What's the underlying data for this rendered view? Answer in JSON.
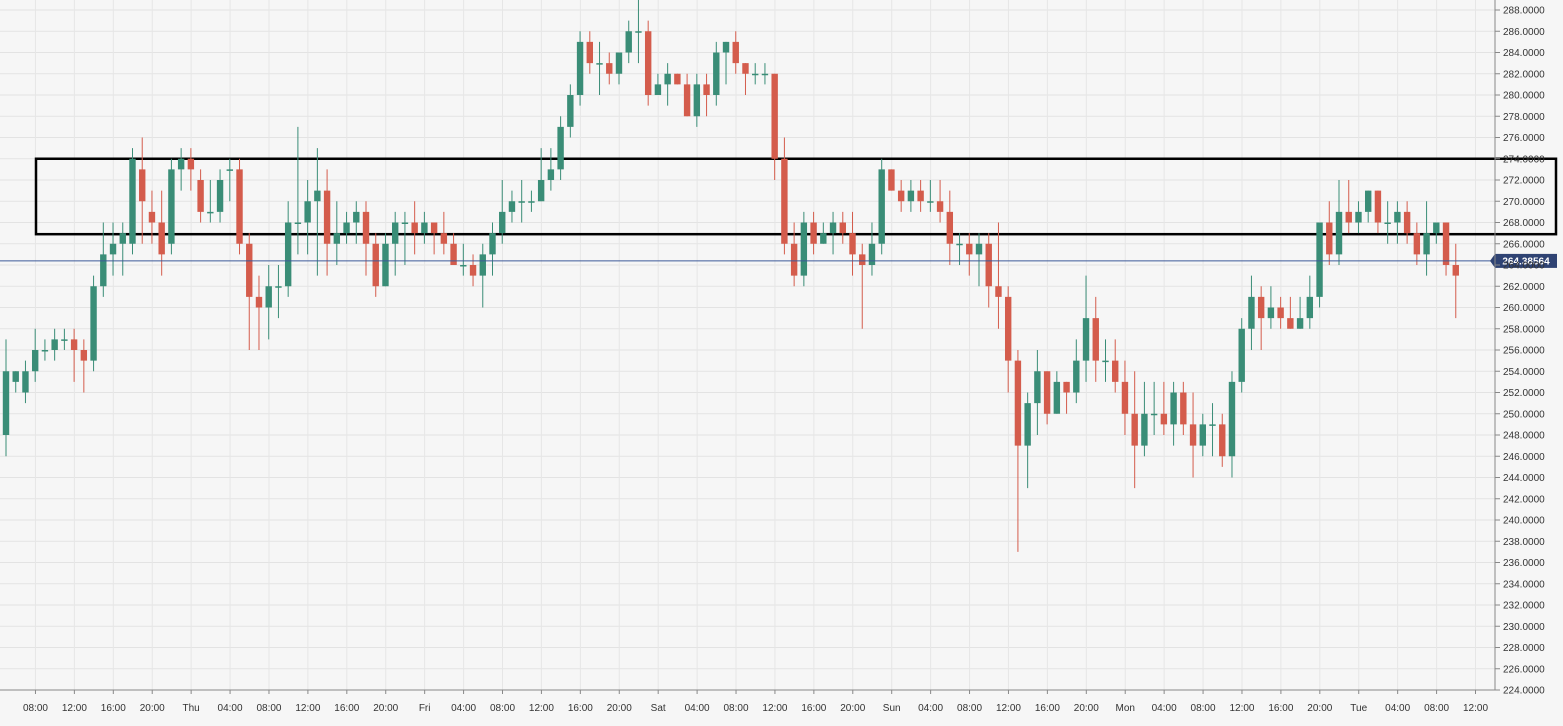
{
  "chart_data": {
    "type": "candlestick",
    "title": "",
    "xlabel": "",
    "ylabel": "",
    "grid": true,
    "colors": {
      "up": "#3a8d77",
      "down": "#d45c4c",
      "price_line": "#3c5a99",
      "box": "#000000"
    },
    "ylim": [
      224,
      288
    ],
    "y_ticks": [
      224,
      226,
      228,
      230,
      232,
      234,
      236,
      238,
      240,
      242,
      244,
      246,
      248,
      250,
      252,
      254,
      256,
      258,
      260,
      262,
      264,
      266,
      268,
      270,
      272,
      274,
      276,
      278,
      280,
      282,
      284,
      286,
      288
    ],
    "y_tick_labels": [
      "224.0000",
      "226.0000",
      "228.0000",
      "230.0000",
      "232.0000",
      "234.0000",
      "236.0000",
      "238.0000",
      "240.0000",
      "242.0000",
      "244.0000",
      "246.0000",
      "248.0000",
      "250.0000",
      "252.0000",
      "254.0000",
      "256.0000",
      "258.0000",
      "260.0000",
      "262.0000",
      "264.0000",
      "266.0000",
      "268.0000",
      "270.0000",
      "272.0000",
      "274.0000",
      "276.0000",
      "278.0000",
      "280.0000",
      "282.0000",
      "284.0000",
      "286.0000",
      "288.0000"
    ],
    "x_ticks": [
      {
        "i": 2,
        "label": "08:00"
      },
      {
        "i": 6,
        "label": "12:00"
      },
      {
        "i": 10,
        "label": "16:00"
      },
      {
        "i": 14,
        "label": "20:00"
      },
      {
        "i": 18,
        "label": "Thu"
      },
      {
        "i": 22,
        "label": "04:00"
      },
      {
        "i": 26,
        "label": "08:00"
      },
      {
        "i": 30,
        "label": "12:00"
      },
      {
        "i": 34,
        "label": "16:00"
      },
      {
        "i": 38,
        "label": "20:00"
      },
      {
        "i": 42,
        "label": "Fri"
      },
      {
        "i": 46,
        "label": "04:00"
      },
      {
        "i": 50,
        "label": "08:00"
      },
      {
        "i": 54,
        "label": "12:00"
      },
      {
        "i": 58,
        "label": "16:00"
      },
      {
        "i": 62,
        "label": "20:00"
      },
      {
        "i": 66,
        "label": "Sat"
      },
      {
        "i": 70,
        "label": "04:00"
      },
      {
        "i": 74,
        "label": "08:00"
      },
      {
        "i": 78,
        "label": "12:00"
      },
      {
        "i": 82,
        "label": "16:00"
      },
      {
        "i": 86,
        "label": "20:00"
      },
      {
        "i": 90,
        "label": "Sun"
      },
      {
        "i": 94,
        "label": "04:00"
      },
      {
        "i": 98,
        "label": "08:00"
      },
      {
        "i": 102,
        "label": "12:00"
      },
      {
        "i": 106,
        "label": "16:00"
      },
      {
        "i": 110,
        "label": "20:00"
      },
      {
        "i": 114,
        "label": "Mon"
      },
      {
        "i": 118,
        "label": "04:00"
      },
      {
        "i": 122,
        "label": "08:00"
      },
      {
        "i": 126,
        "label": "12:00"
      },
      {
        "i": 130,
        "label": "16:00"
      },
      {
        "i": 134,
        "label": "20:00"
      },
      {
        "i": 138,
        "label": "Tue"
      },
      {
        "i": 142,
        "label": "04:00"
      },
      {
        "i": 146,
        "label": "08:00"
      },
      {
        "i": 150,
        "label": "12:00"
      }
    ],
    "candles": [
      [
        248,
        254,
        246,
        257
      ],
      [
        253,
        254,
        252,
        254
      ],
      [
        252,
        254,
        251,
        255
      ],
      [
        254,
        256,
        253,
        258
      ],
      [
        256,
        256,
        255,
        257
      ],
      [
        256,
        257,
        255,
        258
      ],
      [
        257,
        257,
        256,
        258
      ],
      [
        257,
        256,
        253,
        258
      ],
      [
        256,
        255,
        252,
        257
      ],
      [
        255,
        262,
        254,
        263
      ],
      [
        262,
        265,
        261,
        268
      ],
      [
        265,
        266,
        263,
        268
      ],
      [
        266,
        267,
        263,
        268
      ],
      [
        266,
        274,
        265,
        275
      ],
      [
        273,
        270,
        266,
        276
      ],
      [
        269,
        268,
        266,
        271
      ],
      [
        268,
        265,
        263,
        271
      ],
      [
        266,
        273,
        265,
        274
      ],
      [
        273,
        274,
        271,
        275
      ],
      [
        274,
        273,
        271,
        275
      ],
      [
        272,
        269,
        268,
        273
      ],
      [
        269,
        269,
        268,
        272
      ],
      [
        269,
        272,
        268,
        273
      ],
      [
        273,
        273,
        270,
        274
      ],
      [
        273,
        266,
        265,
        274
      ],
      [
        266,
        261,
        256,
        267
      ],
      [
        261,
        260,
        256,
        263
      ],
      [
        260,
        262,
        257,
        264
      ],
      [
        262,
        262,
        259,
        264
      ],
      [
        262,
        268,
        261,
        270
      ],
      [
        268,
        268,
        265,
        277
      ],
      [
        268,
        270,
        265,
        272
      ],
      [
        270,
        271,
        263,
        275
      ],
      [
        271,
        266,
        263,
        273
      ],
      [
        266,
        267,
        264,
        270
      ],
      [
        267,
        268,
        266,
        269
      ],
      [
        268,
        269,
        266,
        270
      ],
      [
        269,
        266,
        263,
        270
      ],
      [
        266,
        262,
        261,
        267
      ],
      [
        262,
        266,
        262,
        267
      ],
      [
        266,
        268,
        263,
        269
      ],
      [
        268,
        268,
        264,
        269
      ],
      [
        268,
        267,
        265,
        270
      ],
      [
        267,
        268,
        266,
        269
      ],
      [
        268,
        267,
        265,
        268
      ],
      [
        267,
        266,
        265,
        269
      ],
      [
        266,
        264,
        264,
        267
      ],
      [
        264,
        264,
        263,
        266
      ],
      [
        264,
        263,
        262,
        265
      ],
      [
        263,
        265,
        260,
        266
      ],
      [
        265,
        267,
        263,
        268
      ],
      [
        267,
        269,
        266,
        272
      ],
      [
        269,
        270,
        268,
        271
      ],
      [
        270,
        270,
        268,
        272
      ],
      [
        270,
        270,
        269,
        271
      ],
      [
        270,
        272,
        270,
        275
      ],
      [
        272,
        273,
        271,
        275
      ],
      [
        273,
        277,
        272,
        278
      ],
      [
        277,
        280,
        276,
        281
      ],
      [
        280,
        285,
        279,
        286
      ],
      [
        285,
        283,
        282,
        286
      ],
      [
        283,
        283,
        280,
        285
      ],
      [
        283,
        282,
        281,
        284
      ],
      [
        282,
        284,
        281,
        284
      ],
      [
        284,
        286,
        283,
        287
      ],
      [
        286,
        286,
        283,
        289
      ],
      [
        286,
        280,
        279,
        287
      ],
      [
        280,
        281,
        280,
        282
      ],
      [
        281,
        282,
        279,
        283
      ],
      [
        282,
        281,
        281,
        282
      ],
      [
        281,
        278,
        278,
        282
      ],
      [
        278,
        281,
        277,
        282
      ],
      [
        281,
        280,
        278,
        282
      ],
      [
        280,
        284,
        279,
        285
      ],
      [
        284,
        285,
        281,
        285
      ],
      [
        285,
        283,
        282,
        286
      ],
      [
        283,
        282,
        280,
        283
      ],
      [
        282,
        282,
        281,
        283
      ],
      [
        282,
        282,
        281,
        283
      ],
      [
        282,
        274,
        272,
        282
      ],
      [
        274,
        266,
        265,
        276
      ],
      [
        266,
        263,
        262,
        268
      ],
      [
        263,
        268,
        262,
        269
      ],
      [
        268,
        266,
        265,
        269
      ],
      [
        266,
        267,
        266,
        268
      ],
      [
        267,
        268,
        265,
        269
      ],
      [
        268,
        267,
        266,
        269
      ],
      [
        267,
        265,
        263,
        269
      ],
      [
        265,
        264,
        258,
        266
      ],
      [
        264,
        266,
        263,
        268
      ],
      [
        266,
        273,
        265,
        274
      ],
      [
        273,
        271,
        271,
        273
      ],
      [
        271,
        270,
        269,
        272
      ],
      [
        270,
        271,
        269,
        272
      ],
      [
        271,
        270,
        269,
        272
      ],
      [
        270,
        270,
        269,
        272
      ],
      [
        270,
        269,
        268,
        272
      ],
      [
        269,
        266,
        264,
        271
      ],
      [
        266,
        266,
        264,
        267
      ],
      [
        266,
        265,
        263,
        267
      ],
      [
        265,
        266,
        262,
        267
      ],
      [
        266,
        262,
        260,
        267
      ],
      [
        262,
        261,
        258,
        268
      ],
      [
        261,
        255,
        252,
        262
      ],
      [
        255,
        247,
        237,
        256
      ],
      [
        247,
        251,
        243,
        252
      ],
      [
        251,
        254,
        248,
        256
      ],
      [
        254,
        250,
        249,
        254
      ],
      [
        250,
        253,
        250,
        254
      ],
      [
        253,
        252,
        250,
        253
      ],
      [
        252,
        255,
        251,
        257
      ],
      [
        255,
        259,
        253,
        263
      ],
      [
        259,
        255,
        253,
        261
      ],
      [
        255,
        255,
        253,
        257
      ],
      [
        255,
        253,
        252,
        257
      ],
      [
        253,
        250,
        248,
        255
      ],
      [
        250,
        247,
        243,
        254
      ],
      [
        247,
        250,
        246,
        253
      ],
      [
        250,
        250,
        248,
        253
      ],
      [
        250,
        249,
        248,
        253
      ],
      [
        249,
        252,
        247,
        253
      ],
      [
        252,
        249,
        248,
        253
      ],
      [
        249,
        247,
        244,
        252
      ],
      [
        247,
        249,
        246,
        250
      ],
      [
        249,
        249,
        246,
        251
      ],
      [
        249,
        246,
        245,
        250
      ],
      [
        246,
        253,
        244,
        254
      ],
      [
        253,
        258,
        252,
        259
      ],
      [
        258,
        261,
        256,
        263
      ],
      [
        261,
        259,
        256,
        262
      ],
      [
        259,
        260,
        258,
        262
      ],
      [
        260,
        259,
        258,
        261
      ],
      [
        259,
        258,
        258,
        261
      ],
      [
        258,
        259,
        258,
        261
      ],
      [
        259,
        261,
        258,
        263
      ],
      [
        261,
        268,
        260,
        268
      ],
      [
        268,
        265,
        264,
        270
      ],
      [
        265,
        269,
        264,
        272
      ],
      [
        269,
        268,
        267,
        272
      ],
      [
        268,
        269,
        267,
        270
      ],
      [
        269,
        271,
        268,
        271
      ],
      [
        271,
        268,
        267,
        271
      ],
      [
        268,
        268,
        266,
        270
      ],
      [
        268,
        269,
        266,
        270
      ],
      [
        269,
        267,
        266,
        270
      ],
      [
        267,
        265,
        264,
        268
      ],
      [
        265,
        267,
        263,
        270
      ],
      [
        267,
        268,
        266,
        268
      ],
      [
        268,
        264,
        263,
        268
      ],
      [
        264,
        263,
        259,
        266
      ]
    ],
    "current_price": 264.38564,
    "current_price_label": "264.38564",
    "box": {
      "y_high": 274.0,
      "y_low": 266.9,
      "x_start_label": "08:00"
    }
  }
}
